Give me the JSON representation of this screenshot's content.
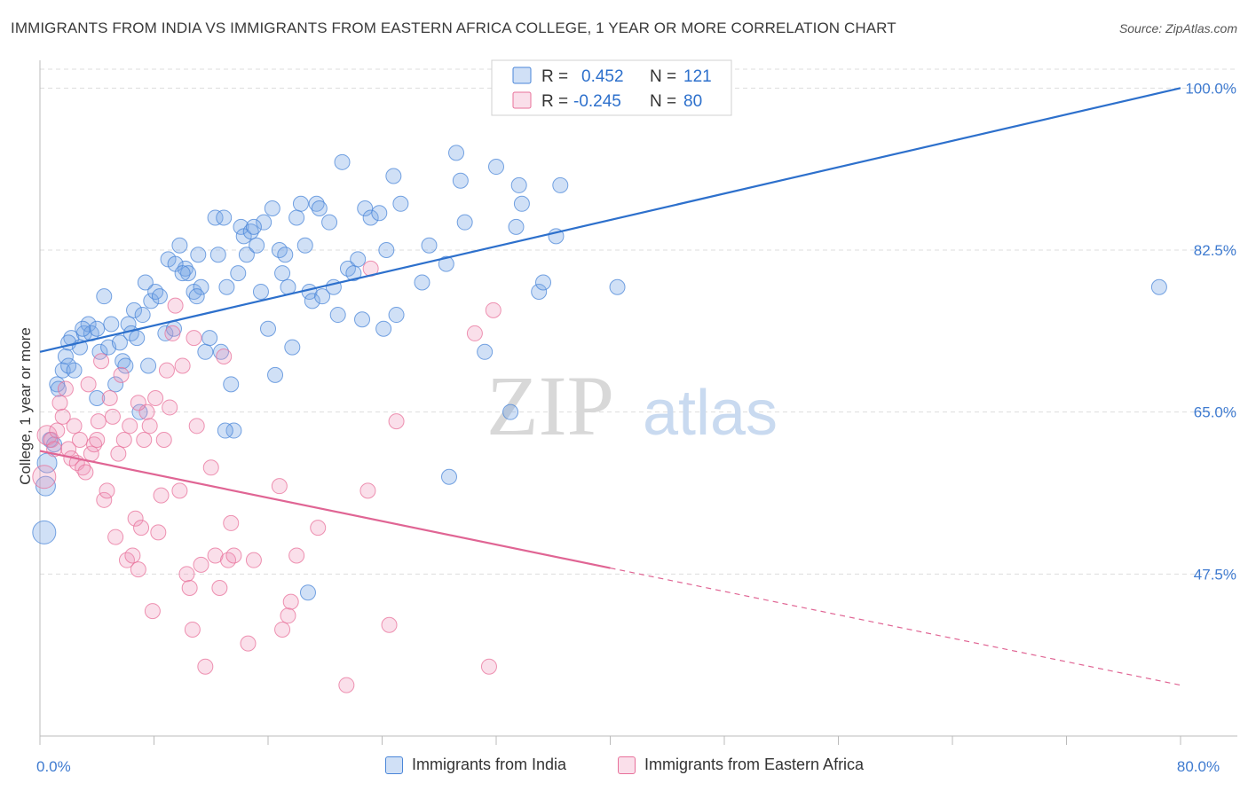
{
  "title": "IMMIGRANTS FROM INDIA VS IMMIGRANTS FROM EASTERN AFRICA COLLEGE, 1 YEAR OR MORE CORRELATION CHART",
  "source": "Source: ZipAtlas.com",
  "watermark": {
    "zip": "ZIP",
    "atlas": "atlas"
  },
  "colors": {
    "blue": "#4a86d8",
    "blue_fill": "rgba(120,165,230,0.35)",
    "blue_line": "#2d70cc",
    "pink": "#e8709a",
    "pink_fill": "rgba(240,150,185,0.30)",
    "pink_line": "#e06594",
    "axis_label": "#3f7bd0",
    "grid": "#dddddd"
  },
  "legend_box": {
    "rows": [
      {
        "r_label": "R =",
        "r_value": "0.452",
        "n_label": "N =",
        "n_value": "121",
        "color": "blue"
      },
      {
        "r_label": "R =",
        "r_value": "-0.245",
        "n_label": "N =",
        "n_value": "80",
        "color": "pink"
      }
    ]
  },
  "bottom_legend": [
    {
      "label": "Immigrants from India",
      "color": "blue"
    },
    {
      "label": "Immigrants from Eastern Africa",
      "color": "pink"
    }
  ],
  "chart_data": {
    "type": "scatter",
    "ylabel": "College, 1 year or more",
    "xlabel": "",
    "xlim": [
      0,
      80
    ],
    "ylim": [
      30,
      103
    ],
    "x_ticks": [
      0,
      8,
      16,
      24,
      32,
      40,
      48,
      56,
      64,
      72,
      80
    ],
    "x_tick_labels": {
      "0": "0.0%",
      "80": "80.0%"
    },
    "y_ticks": [
      47.5,
      65.0,
      82.5,
      100.0
    ],
    "y_tick_labels": [
      "47.5%",
      "65.0%",
      "82.5%",
      "100.0%"
    ],
    "grid": true,
    "series": [
      {
        "name": "Immigrants from India",
        "color": "blue",
        "trend": {
          "x": [
            0,
            80
          ],
          "y": [
            71.5,
            100.0
          ],
          "dashed_from": null
        },
        "points": [
          [
            0.3,
            52.0,
            3
          ],
          [
            0.4,
            57.0,
            2
          ],
          [
            0.5,
            59.5,
            2
          ],
          [
            0.7,
            62.0,
            1
          ],
          [
            1.0,
            61.5,
            1
          ],
          [
            1.2,
            68.0,
            1
          ],
          [
            1.3,
            67.5,
            1
          ],
          [
            1.6,
            69.5,
            1
          ],
          [
            1.8,
            71.0,
            1
          ],
          [
            2.0,
            70.0,
            1
          ],
          [
            2.2,
            73.0,
            1
          ],
          [
            2.4,
            69.5,
            1
          ],
          [
            2.8,
            72.0,
            1
          ],
          [
            3.1,
            73.5,
            1
          ],
          [
            3.4,
            74.5,
            1
          ],
          [
            3.6,
            73.5,
            1
          ],
          [
            4.0,
            74.0,
            1
          ],
          [
            4.2,
            71.5,
            1
          ],
          [
            4.5,
            77.5,
            1
          ],
          [
            4.8,
            72.0,
            1
          ],
          [
            5.0,
            74.5,
            1
          ],
          [
            5.3,
            68.0,
            1
          ],
          [
            5.6,
            72.5,
            1
          ],
          [
            5.8,
            70.5,
            1
          ],
          [
            6.2,
            74.5,
            1
          ],
          [
            6.4,
            73.5,
            1
          ],
          [
            6.6,
            76.0,
            1
          ],
          [
            6.8,
            73.0,
            1
          ],
          [
            7.2,
            75.5,
            1
          ],
          [
            7.4,
            79.0,
            1
          ],
          [
            7.6,
            70.0,
            1
          ],
          [
            7.8,
            77.0,
            1
          ],
          [
            8.1,
            78.0,
            1
          ],
          [
            8.4,
            77.5,
            1
          ],
          [
            8.8,
            73.5,
            1
          ],
          [
            9.0,
            81.5,
            1
          ],
          [
            9.4,
            74.0,
            1
          ],
          [
            9.8,
            83.0,
            1
          ],
          [
            10.2,
            80.5,
            1
          ],
          [
            10.4,
            80.0,
            1
          ],
          [
            10.8,
            78.0,
            1
          ],
          [
            11.1,
            82.0,
            1
          ],
          [
            11.3,
            78.5,
            1
          ],
          [
            11.6,
            71.5,
            1
          ],
          [
            11.9,
            73.0,
            1
          ],
          [
            12.3,
            86.0,
            1
          ],
          [
            12.5,
            82.0,
            1
          ],
          [
            12.7,
            71.5,
            1
          ],
          [
            12.9,
            86.0,
            1
          ],
          [
            13.1,
            78.5,
            1
          ],
          [
            13.4,
            68.0,
            1
          ],
          [
            13.6,
            63.0,
            1
          ],
          [
            13.9,
            80.0,
            1
          ],
          [
            14.1,
            85.0,
            1
          ],
          [
            14.3,
            84.0,
            1
          ],
          [
            14.5,
            82.0,
            1
          ],
          [
            14.8,
            84.5,
            1
          ],
          [
            15.2,
            83.0,
            1
          ],
          [
            15.5,
            78.0,
            1
          ],
          [
            15.7,
            85.5,
            1
          ],
          [
            16.0,
            74.0,
            1
          ],
          [
            16.3,
            87.0,
            1
          ],
          [
            16.5,
            69.0,
            1
          ],
          [
            16.8,
            82.5,
            1
          ],
          [
            17.2,
            82.0,
            1
          ],
          [
            17.4,
            78.5,
            1
          ],
          [
            17.7,
            72.0,
            1
          ],
          [
            18.0,
            86.0,
            1
          ],
          [
            18.3,
            87.5,
            1
          ],
          [
            18.6,
            83.0,
            1
          ],
          [
            18.9,
            78.0,
            1
          ],
          [
            19.1,
            77.0,
            1
          ],
          [
            19.4,
            87.5,
            1
          ],
          [
            19.6,
            87.0,
            1
          ],
          [
            19.8,
            77.5,
            1
          ],
          [
            20.3,
            85.5,
            1
          ],
          [
            20.6,
            78.5,
            1
          ],
          [
            20.9,
            75.5,
            1
          ],
          [
            21.2,
            92.0,
            1
          ],
          [
            21.6,
            80.5,
            1
          ],
          [
            22.0,
            80.0,
            1
          ],
          [
            22.6,
            75.0,
            1
          ],
          [
            22.8,
            87.0,
            1
          ],
          [
            23.2,
            86.0,
            1
          ],
          [
            23.8,
            86.5,
            1
          ],
          [
            24.1,
            74.0,
            1
          ],
          [
            24.3,
            82.5,
            1
          ],
          [
            24.8,
            90.5,
            1
          ],
          [
            25.0,
            75.5,
            1
          ],
          [
            25.3,
            87.5,
            1
          ],
          [
            26.8,
            79.0,
            1
          ],
          [
            27.3,
            83.0,
            1
          ],
          [
            28.5,
            81.0,
            1
          ],
          [
            28.7,
            58.0,
            1
          ],
          [
            29.2,
            93.0,
            1
          ],
          [
            29.5,
            90.0,
            1
          ],
          [
            29.8,
            85.5,
            1
          ],
          [
            31.2,
            71.5,
            1
          ],
          [
            32.0,
            91.5,
            1
          ],
          [
            33.0,
            65.0,
            1
          ],
          [
            33.4,
            85.0,
            1
          ],
          [
            33.6,
            89.5,
            1
          ],
          [
            33.8,
            87.5,
            1
          ],
          [
            35.0,
            78.0,
            1
          ],
          [
            35.3,
            79.0,
            1
          ],
          [
            36.2,
            84.0,
            1
          ],
          [
            36.5,
            89.5,
            1
          ],
          [
            40.5,
            78.5,
            1
          ],
          [
            78.5,
            78.5,
            1
          ],
          [
            13.0,
            63.0,
            1
          ],
          [
            18.8,
            45.5,
            1
          ],
          [
            11.0,
            77.5,
            1
          ],
          [
            9.5,
            81.0,
            1
          ],
          [
            17.0,
            80.0,
            1
          ],
          [
            15.0,
            85.0,
            1
          ],
          [
            22.3,
            81.5,
            1
          ],
          [
            6.0,
            70.0,
            1
          ],
          [
            4.0,
            66.5,
            1
          ],
          [
            7.0,
            65.0,
            1
          ],
          [
            3.0,
            74.0,
            1
          ],
          [
            2.0,
            72.5,
            1
          ],
          [
            10.0,
            80.0,
            1
          ]
        ]
      },
      {
        "name": "Immigrants from Eastern Africa",
        "color": "pink",
        "trend": {
          "x": [
            0,
            80
          ],
          "y": [
            60.8,
            35.5
          ],
          "dashed_from": 40
        },
        "points": [
          [
            0.3,
            58.0,
            3
          ],
          [
            0.5,
            62.5,
            2
          ],
          [
            0.8,
            62.0,
            1
          ],
          [
            1.0,
            61.0,
            1
          ],
          [
            1.2,
            63.0,
            1
          ],
          [
            1.4,
            66.0,
            1
          ],
          [
            1.6,
            64.5,
            1
          ],
          [
            1.8,
            67.5,
            1
          ],
          [
            2.0,
            61.0,
            1
          ],
          [
            2.2,
            60.0,
            1
          ],
          [
            2.4,
            63.5,
            1
          ],
          [
            2.6,
            59.5,
            1
          ],
          [
            2.8,
            62.0,
            1
          ],
          [
            3.0,
            59.0,
            1
          ],
          [
            3.2,
            58.5,
            1
          ],
          [
            3.4,
            68.0,
            1
          ],
          [
            3.6,
            60.5,
            1
          ],
          [
            3.8,
            61.5,
            1
          ],
          [
            4.0,
            62.0,
            1
          ],
          [
            4.1,
            64.0,
            1
          ],
          [
            4.3,
            70.5,
            1
          ],
          [
            4.5,
            55.5,
            1
          ],
          [
            4.7,
            56.5,
            1
          ],
          [
            4.9,
            66.5,
            1
          ],
          [
            5.1,
            64.5,
            1
          ],
          [
            5.3,
            51.5,
            1
          ],
          [
            5.5,
            60.5,
            1
          ],
          [
            5.7,
            69.0,
            1
          ],
          [
            5.9,
            62.0,
            1
          ],
          [
            6.1,
            49.0,
            1
          ],
          [
            6.3,
            63.5,
            1
          ],
          [
            6.5,
            49.5,
            1
          ],
          [
            6.7,
            53.5,
            1
          ],
          [
            6.9,
            48.0,
            1
          ],
          [
            7.1,
            52.5,
            1
          ],
          [
            7.3,
            62.0,
            1
          ],
          [
            7.5,
            65.0,
            1
          ],
          [
            7.7,
            63.5,
            1
          ],
          [
            7.9,
            43.5,
            1
          ],
          [
            8.1,
            66.5,
            1
          ],
          [
            8.3,
            52.0,
            1
          ],
          [
            8.5,
            56.0,
            1
          ],
          [
            8.7,
            62.0,
            1
          ],
          [
            8.9,
            69.5,
            1
          ],
          [
            9.1,
            65.5,
            1
          ],
          [
            9.3,
            73.5,
            1
          ],
          [
            9.5,
            76.5,
            1
          ],
          [
            9.8,
            56.5,
            1
          ],
          [
            10.0,
            70.0,
            1
          ],
          [
            10.3,
            47.5,
            1
          ],
          [
            10.5,
            46.0,
            1
          ],
          [
            10.7,
            41.5,
            1
          ],
          [
            11.0,
            63.5,
            1
          ],
          [
            11.3,
            48.5,
            1
          ],
          [
            11.6,
            37.5,
            1
          ],
          [
            12.0,
            59.0,
            1
          ],
          [
            12.3,
            49.5,
            1
          ],
          [
            12.6,
            46.0,
            1
          ],
          [
            12.9,
            71.0,
            1
          ],
          [
            13.2,
            49.0,
            1
          ],
          [
            13.4,
            53.0,
            1
          ],
          [
            13.6,
            49.5,
            1
          ],
          [
            14.6,
            40.0,
            1
          ],
          [
            15.0,
            49.0,
            1
          ],
          [
            16.8,
            57.0,
            1
          ],
          [
            17.0,
            41.5,
            1
          ],
          [
            17.4,
            43.0,
            1
          ],
          [
            17.6,
            44.5,
            1
          ],
          [
            18.0,
            49.5,
            1
          ],
          [
            19.5,
            52.5,
            1
          ],
          [
            21.5,
            35.5,
            1
          ],
          [
            23.0,
            56.5,
            1
          ],
          [
            23.2,
            80.5,
            1
          ],
          [
            24.5,
            42.0,
            1
          ],
          [
            25.0,
            64.0,
            1
          ],
          [
            30.5,
            73.5,
            1
          ],
          [
            31.5,
            37.5,
            1
          ],
          [
            31.8,
            76.0,
            1
          ],
          [
            10.8,
            73.0,
            1
          ],
          [
            6.9,
            66.0,
            1
          ]
        ]
      }
    ]
  }
}
